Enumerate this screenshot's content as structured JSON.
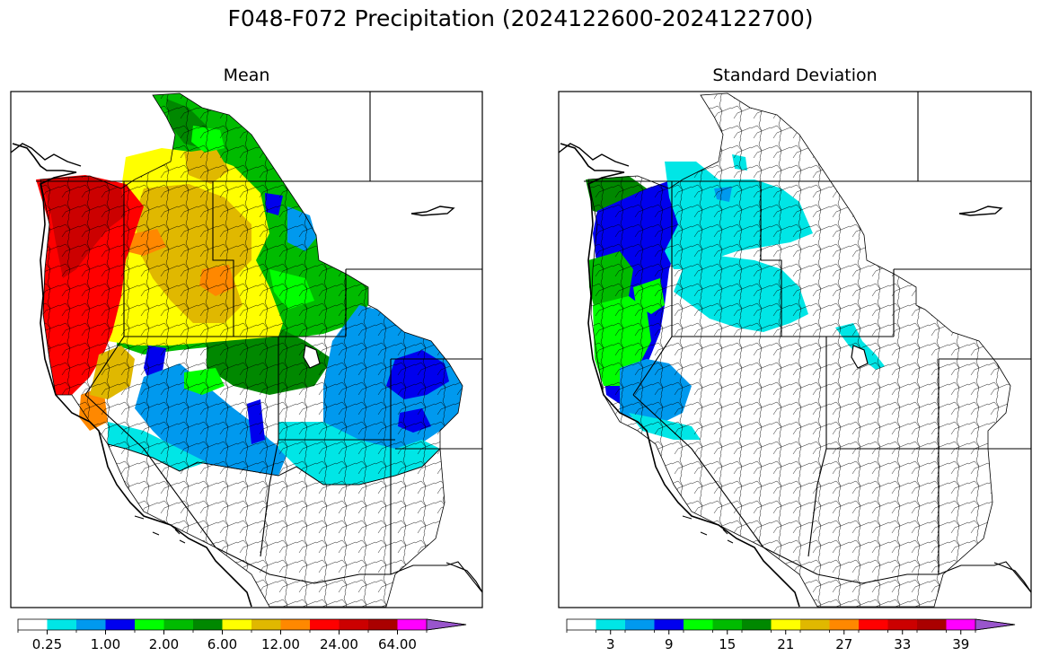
{
  "figure": {
    "title": "F048-F072 Precipitation (2024122600-2024122700)"
  },
  "panels": [
    {
      "title": "Mean",
      "colorbar": {
        "colors": [
          "#ffffff",
          "#00e6e6",
          "#0099ee",
          "#0000ee",
          "#00ff00",
          "#00bb00",
          "#008800",
          "#ffff00",
          "#e0b800",
          "#ff8800",
          "#ff0000",
          "#cc0000",
          "#aa0000",
          "#ff00ff",
          "#9955cc"
        ],
        "tick_labels": [
          "0.25",
          "1.00",
          "2.00",
          "6.00",
          "12.00",
          "24.00",
          "64.00"
        ],
        "extend": "max"
      }
    },
    {
      "title": "Standard Deviation",
      "colorbar": {
        "colors": [
          "#ffffff",
          "#00e6e6",
          "#0099ee",
          "#0000ee",
          "#00ff00",
          "#00bb00",
          "#008800",
          "#ffff00",
          "#e0b800",
          "#ff8800",
          "#ff0000",
          "#cc0000",
          "#aa0000",
          "#ff00ff",
          "#9955cc"
        ],
        "tick_labels": [
          "3",
          "9",
          "15",
          "21",
          "27",
          "33",
          "39"
        ],
        "extend": "max"
      }
    }
  ]
}
